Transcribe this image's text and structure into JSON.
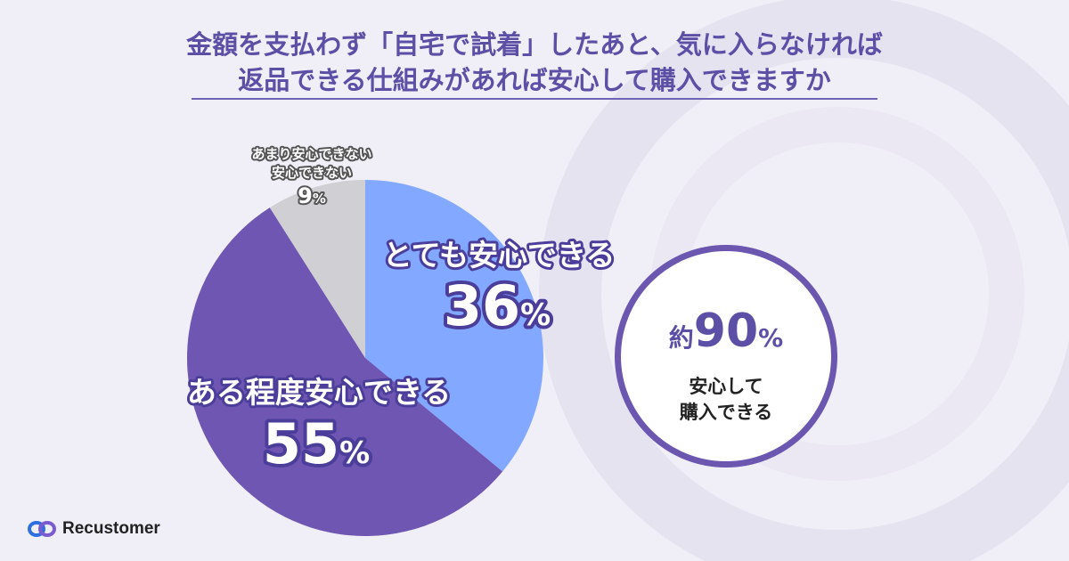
{
  "title": {
    "line1": "金額を支払わず「自宅で試着」したあと、気に入らなければ",
    "line2": "返品できる仕組みがあれば安心して購入できますか"
  },
  "chart_data": {
    "type": "pie",
    "title": "金額を支払わず「自宅で試着」したあと、気に入らなければ返品できる仕組みがあれば安心して購入できますか",
    "slices": [
      {
        "label": "とても安心できる",
        "value": 36,
        "color": "#82a8ff"
      },
      {
        "label": "ある程度安心できる",
        "value": 55,
        "color": "#6f56b2"
      },
      {
        "label": "あまり安心できない 安心できない",
        "value": 9,
        "color": "#cfcfd4"
      }
    ],
    "value_suffix": "%",
    "small_label": {
      "line1": "あまり安心できない",
      "line2": "安心できない",
      "value": "9"
    }
  },
  "summary": {
    "prefix": "約",
    "value": "90",
    "unit": "%",
    "line1": "安心して",
    "line2": "購入できる"
  },
  "brand": {
    "name": "Recustomer"
  },
  "colors": {
    "accent": "#6b56b0",
    "title": "#5b4fa6",
    "background": "#f0eef7"
  }
}
